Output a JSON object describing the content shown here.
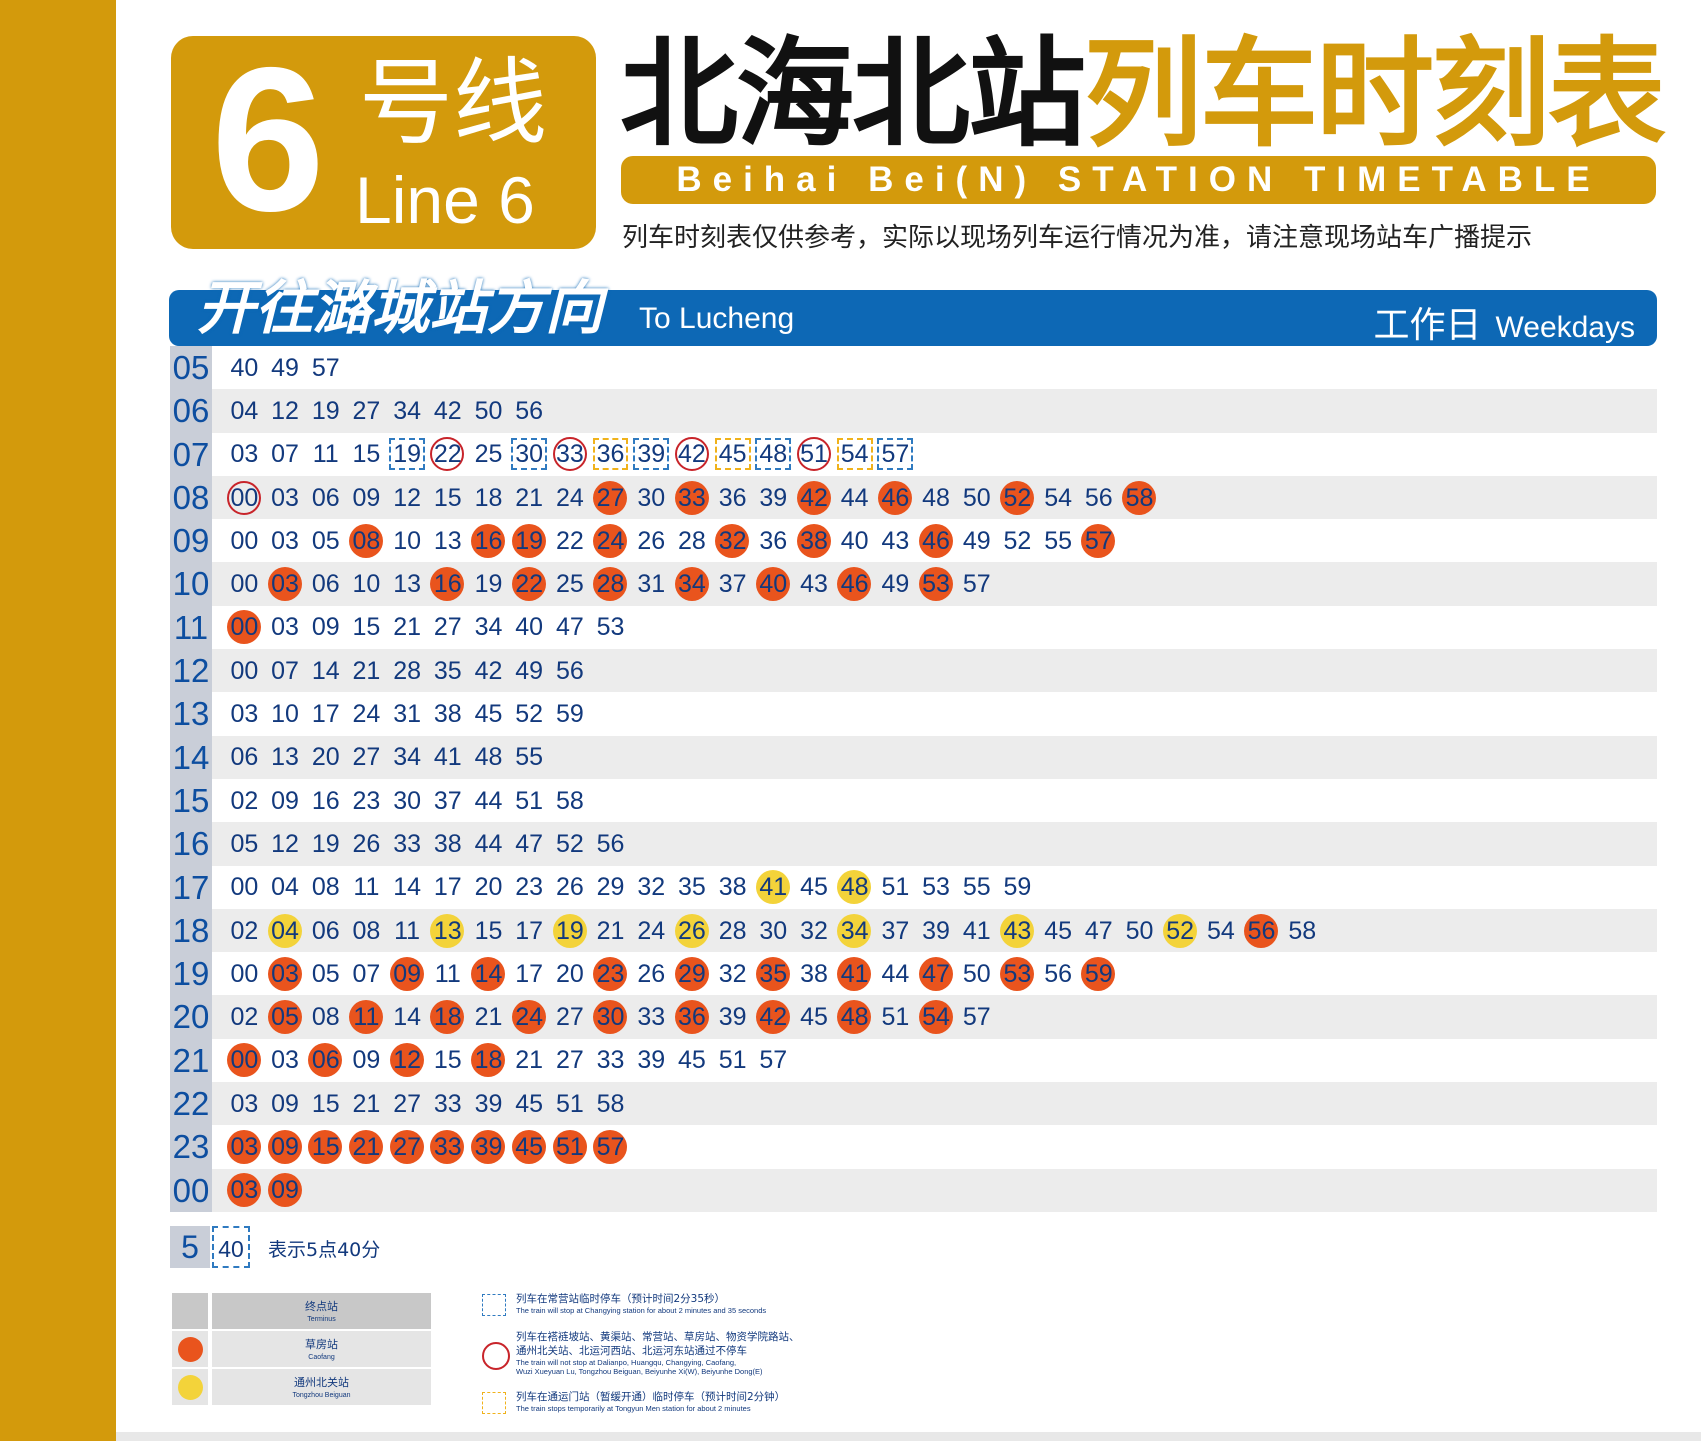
{
  "badge": {
    "number": "6",
    "cn": "号线",
    "en": "Line 6"
  },
  "title": {
    "station": "北海北站",
    "suffix": "列车时刻表"
  },
  "subtitle": "Beihai Bei(N) STATION TIMETABLE",
  "notice": "列车时刻表仅供参考，实际以现场列车运行情况为准，请注意现场站车广播提示",
  "direction": {
    "cn": "开往潞城站方向",
    "en": "To Lucheng",
    "day_cn": "工作日",
    "day_en": "Weekdays"
  },
  "colors": {
    "gold": "#d39a0c",
    "blue": "#0d68b5",
    "orange": "#e9541d",
    "yellow": "#f3d33a",
    "ring": "#c8242a"
  },
  "timetable": [
    {
      "hour": "05",
      "minutes": [
        [
          "40",
          ""
        ],
        [
          "49",
          ""
        ],
        [
          "57",
          ""
        ]
      ]
    },
    {
      "hour": "06",
      "minutes": [
        [
          "04",
          ""
        ],
        [
          "12",
          ""
        ],
        [
          "19",
          ""
        ],
        [
          "27",
          ""
        ],
        [
          "34",
          ""
        ],
        [
          "42",
          ""
        ],
        [
          "50",
          ""
        ],
        [
          "56",
          ""
        ]
      ]
    },
    {
      "hour": "07",
      "minutes": [
        [
          "03",
          ""
        ],
        [
          "07",
          ""
        ],
        [
          "11",
          ""
        ],
        [
          "15",
          ""
        ],
        [
          "19",
          "bsq"
        ],
        [
          "22",
          "ring"
        ],
        [
          "25",
          ""
        ],
        [
          "30",
          "bsq"
        ],
        [
          "33",
          "ring"
        ],
        [
          "36",
          "ysq"
        ],
        [
          "39",
          "bsq"
        ],
        [
          "42",
          "ring"
        ],
        [
          "45",
          "ysq"
        ],
        [
          "48",
          "bsq"
        ],
        [
          "51",
          "ring"
        ],
        [
          "54",
          "ysq"
        ],
        [
          "57",
          "bsq"
        ]
      ]
    },
    {
      "hour": "08",
      "minutes": [
        [
          "00",
          "ring"
        ],
        [
          "03",
          ""
        ],
        [
          "06",
          ""
        ],
        [
          "09",
          ""
        ],
        [
          "12",
          ""
        ],
        [
          "15",
          ""
        ],
        [
          "18",
          ""
        ],
        [
          "21",
          ""
        ],
        [
          "24",
          ""
        ],
        [
          "27",
          "orange"
        ],
        [
          "30",
          ""
        ],
        [
          "33",
          "orange"
        ],
        [
          "36",
          ""
        ],
        [
          "39",
          ""
        ],
        [
          "42",
          "orange"
        ],
        [
          "44",
          ""
        ],
        [
          "46",
          "orange"
        ],
        [
          "48",
          ""
        ],
        [
          "50",
          ""
        ],
        [
          "52",
          "orange"
        ],
        [
          "54",
          ""
        ],
        [
          "56",
          ""
        ],
        [
          "58",
          "orange"
        ]
      ]
    },
    {
      "hour": "09",
      "minutes": [
        [
          "00",
          ""
        ],
        [
          "03",
          ""
        ],
        [
          "05",
          ""
        ],
        [
          "08",
          "orange"
        ],
        [
          "10",
          ""
        ],
        [
          "13",
          ""
        ],
        [
          "16",
          "orange"
        ],
        [
          "19",
          "orange"
        ],
        [
          "22",
          ""
        ],
        [
          "24",
          "orange"
        ],
        [
          "26",
          ""
        ],
        [
          "28",
          ""
        ],
        [
          "32",
          "orange"
        ],
        [
          "36",
          ""
        ],
        [
          "38",
          "orange"
        ],
        [
          "40",
          ""
        ],
        [
          "43",
          ""
        ],
        [
          "46",
          "orange"
        ],
        [
          "49",
          ""
        ],
        [
          "52",
          ""
        ],
        [
          "55",
          ""
        ],
        [
          "57",
          "orange"
        ]
      ]
    },
    {
      "hour": "10",
      "minutes": [
        [
          "00",
          ""
        ],
        [
          "03",
          "orange"
        ],
        [
          "06",
          ""
        ],
        [
          "10",
          ""
        ],
        [
          "13",
          ""
        ],
        [
          "16",
          "orange"
        ],
        [
          "19",
          ""
        ],
        [
          "22",
          "orange"
        ],
        [
          "25",
          ""
        ],
        [
          "28",
          "orange"
        ],
        [
          "31",
          ""
        ],
        [
          "34",
          "orange"
        ],
        [
          "37",
          ""
        ],
        [
          "40",
          "orange"
        ],
        [
          "43",
          ""
        ],
        [
          "46",
          "orange"
        ],
        [
          "49",
          ""
        ],
        [
          "53",
          "orange"
        ],
        [
          "57",
          ""
        ]
      ]
    },
    {
      "hour": "11",
      "minutes": [
        [
          "00",
          "orange"
        ],
        [
          "03",
          ""
        ],
        [
          "09",
          ""
        ],
        [
          "15",
          ""
        ],
        [
          "21",
          ""
        ],
        [
          "27",
          ""
        ],
        [
          "34",
          ""
        ],
        [
          "40",
          ""
        ],
        [
          "47",
          ""
        ],
        [
          "53",
          ""
        ]
      ]
    },
    {
      "hour": "12",
      "minutes": [
        [
          "00",
          ""
        ],
        [
          "07",
          ""
        ],
        [
          "14",
          ""
        ],
        [
          "21",
          ""
        ],
        [
          "28",
          ""
        ],
        [
          "35",
          ""
        ],
        [
          "42",
          ""
        ],
        [
          "49",
          ""
        ],
        [
          "56",
          ""
        ]
      ]
    },
    {
      "hour": "13",
      "minutes": [
        [
          "03",
          ""
        ],
        [
          "10",
          ""
        ],
        [
          "17",
          ""
        ],
        [
          "24",
          ""
        ],
        [
          "31",
          ""
        ],
        [
          "38",
          ""
        ],
        [
          "45",
          ""
        ],
        [
          "52",
          ""
        ],
        [
          "59",
          ""
        ]
      ]
    },
    {
      "hour": "14",
      "minutes": [
        [
          "06",
          ""
        ],
        [
          "13",
          ""
        ],
        [
          "20",
          ""
        ],
        [
          "27",
          ""
        ],
        [
          "34",
          ""
        ],
        [
          "41",
          ""
        ],
        [
          "48",
          ""
        ],
        [
          "55",
          ""
        ]
      ]
    },
    {
      "hour": "15",
      "minutes": [
        [
          "02",
          ""
        ],
        [
          "09",
          ""
        ],
        [
          "16",
          ""
        ],
        [
          "23",
          ""
        ],
        [
          "30",
          ""
        ],
        [
          "37",
          ""
        ],
        [
          "44",
          ""
        ],
        [
          "51",
          ""
        ],
        [
          "58",
          ""
        ]
      ]
    },
    {
      "hour": "16",
      "minutes": [
        [
          "05",
          ""
        ],
        [
          "12",
          ""
        ],
        [
          "19",
          ""
        ],
        [
          "26",
          ""
        ],
        [
          "33",
          ""
        ],
        [
          "38",
          ""
        ],
        [
          "44",
          ""
        ],
        [
          "47",
          ""
        ],
        [
          "52",
          ""
        ],
        [
          "56",
          ""
        ]
      ]
    },
    {
      "hour": "17",
      "minutes": [
        [
          "00",
          ""
        ],
        [
          "04",
          ""
        ],
        [
          "08",
          ""
        ],
        [
          "11",
          ""
        ],
        [
          "14",
          ""
        ],
        [
          "17",
          ""
        ],
        [
          "20",
          ""
        ],
        [
          "23",
          ""
        ],
        [
          "26",
          ""
        ],
        [
          "29",
          ""
        ],
        [
          "32",
          ""
        ],
        [
          "35",
          ""
        ],
        [
          "38",
          ""
        ],
        [
          "41",
          "yellow"
        ],
        [
          "45",
          ""
        ],
        [
          "48",
          "yellow"
        ],
        [
          "51",
          ""
        ],
        [
          "53",
          ""
        ],
        [
          "55",
          ""
        ],
        [
          "59",
          ""
        ]
      ]
    },
    {
      "hour": "18",
      "minutes": [
        [
          "02",
          ""
        ],
        [
          "04",
          "yellow"
        ],
        [
          "06",
          ""
        ],
        [
          "08",
          ""
        ],
        [
          "11",
          ""
        ],
        [
          "13",
          "yellow"
        ],
        [
          "15",
          ""
        ],
        [
          "17",
          ""
        ],
        [
          "19",
          "yellow"
        ],
        [
          "21",
          ""
        ],
        [
          "24",
          ""
        ],
        [
          "26",
          "yellow"
        ],
        [
          "28",
          ""
        ],
        [
          "30",
          ""
        ],
        [
          "32",
          ""
        ],
        [
          "34",
          "yellow"
        ],
        [
          "37",
          ""
        ],
        [
          "39",
          ""
        ],
        [
          "41",
          ""
        ],
        [
          "43",
          "yellow"
        ],
        [
          "45",
          ""
        ],
        [
          "47",
          ""
        ],
        [
          "50",
          ""
        ],
        [
          "52",
          "yellow"
        ],
        [
          "54",
          ""
        ],
        [
          "56",
          "orange"
        ],
        [
          "58",
          ""
        ]
      ]
    },
    {
      "hour": "19",
      "minutes": [
        [
          "00",
          ""
        ],
        [
          "03",
          "orange"
        ],
        [
          "05",
          ""
        ],
        [
          "07",
          ""
        ],
        [
          "09",
          "orange"
        ],
        [
          "11",
          ""
        ],
        [
          "14",
          "orange"
        ],
        [
          "17",
          ""
        ],
        [
          "20",
          ""
        ],
        [
          "23",
          "orange"
        ],
        [
          "26",
          ""
        ],
        [
          "29",
          "orange"
        ],
        [
          "32",
          ""
        ],
        [
          "35",
          "orange"
        ],
        [
          "38",
          ""
        ],
        [
          "41",
          "orange"
        ],
        [
          "44",
          ""
        ],
        [
          "47",
          "orange"
        ],
        [
          "50",
          ""
        ],
        [
          "53",
          "orange"
        ],
        [
          "56",
          ""
        ],
        [
          "59",
          "orange"
        ]
      ]
    },
    {
      "hour": "20",
      "minutes": [
        [
          "02",
          ""
        ],
        [
          "05",
          "orange"
        ],
        [
          "08",
          ""
        ],
        [
          "11",
          "orange"
        ],
        [
          "14",
          ""
        ],
        [
          "18",
          "orange"
        ],
        [
          "21",
          ""
        ],
        [
          "24",
          "orange"
        ],
        [
          "27",
          ""
        ],
        [
          "30",
          "orange"
        ],
        [
          "33",
          ""
        ],
        [
          "36",
          "orange"
        ],
        [
          "39",
          ""
        ],
        [
          "42",
          "orange"
        ],
        [
          "45",
          ""
        ],
        [
          "48",
          "orange"
        ],
        [
          "51",
          ""
        ],
        [
          "54",
          "orange"
        ],
        [
          "57",
          ""
        ]
      ]
    },
    {
      "hour": "21",
      "minutes": [
        [
          "00",
          "orange"
        ],
        [
          "03",
          ""
        ],
        [
          "06",
          "orange"
        ],
        [
          "09",
          ""
        ],
        [
          "12",
          "orange"
        ],
        [
          "15",
          ""
        ],
        [
          "18",
          "orange"
        ],
        [
          "21",
          ""
        ],
        [
          "27",
          ""
        ],
        [
          "33",
          ""
        ],
        [
          "39",
          ""
        ],
        [
          "45",
          ""
        ],
        [
          "51",
          ""
        ],
        [
          "57",
          ""
        ]
      ]
    },
    {
      "hour": "22",
      "minutes": [
        [
          "03",
          ""
        ],
        [
          "09",
          ""
        ],
        [
          "15",
          ""
        ],
        [
          "21",
          ""
        ],
        [
          "27",
          ""
        ],
        [
          "33",
          ""
        ],
        [
          "39",
          ""
        ],
        [
          "45",
          ""
        ],
        [
          "51",
          ""
        ],
        [
          "58",
          ""
        ]
      ]
    },
    {
      "hour": "23",
      "minutes": [
        [
          "03",
          "orange"
        ],
        [
          "09",
          "orange"
        ],
        [
          "15",
          "orange"
        ],
        [
          "21",
          "orange"
        ],
        [
          "27",
          "orange"
        ],
        [
          "33",
          "orange"
        ],
        [
          "39",
          "orange"
        ],
        [
          "45",
          "orange"
        ],
        [
          "51",
          "orange"
        ],
        [
          "57",
          "orange"
        ]
      ]
    },
    {
      "hour": "00",
      "minutes": [
        [
          "03",
          "orange"
        ],
        [
          "09",
          "orange"
        ]
      ]
    }
  ],
  "example": {
    "hour": "5",
    "minute": "40",
    "desc": "表示5点40分"
  },
  "legend_table": [
    {
      "cn": "终点站",
      "en": "Terminus",
      "dot": ""
    },
    {
      "cn": "草房站",
      "en": "Caofang",
      "dot": "orange"
    },
    {
      "cn": "通州北关站",
      "en": "Tongzhou Beiguan",
      "dot": "yellow"
    }
  ],
  "legend_notes": {
    "blue_square": {
      "cn": "列车在常营站临时停车（预计时间2分35秒）",
      "en": "The train will stop at Changying station for about 2 minutes and 35 seconds"
    },
    "red_ring": {
      "cn1": "列车在褡裢坡站、黄渠站、常营站、草房站、物资学院路站、",
      "cn2": "通州北关站、北运河西站、北运河东站通过不停车",
      "en1": "The train will not stop at Dalianpo, Huangqu, Changying, Caofang,",
      "en2": "Wuzi Xueyuan Lu, Tongzhou Beiguan, Beiyunhe Xi(W), Beiyunhe Dong(E)"
    },
    "yellow_square": {
      "cn": "列车在通运门站（暂缓开通）临时停车（预计时间2分钟）",
      "en": "The train stops temporarily at Tongyun Men station for about 2 minutes"
    }
  }
}
